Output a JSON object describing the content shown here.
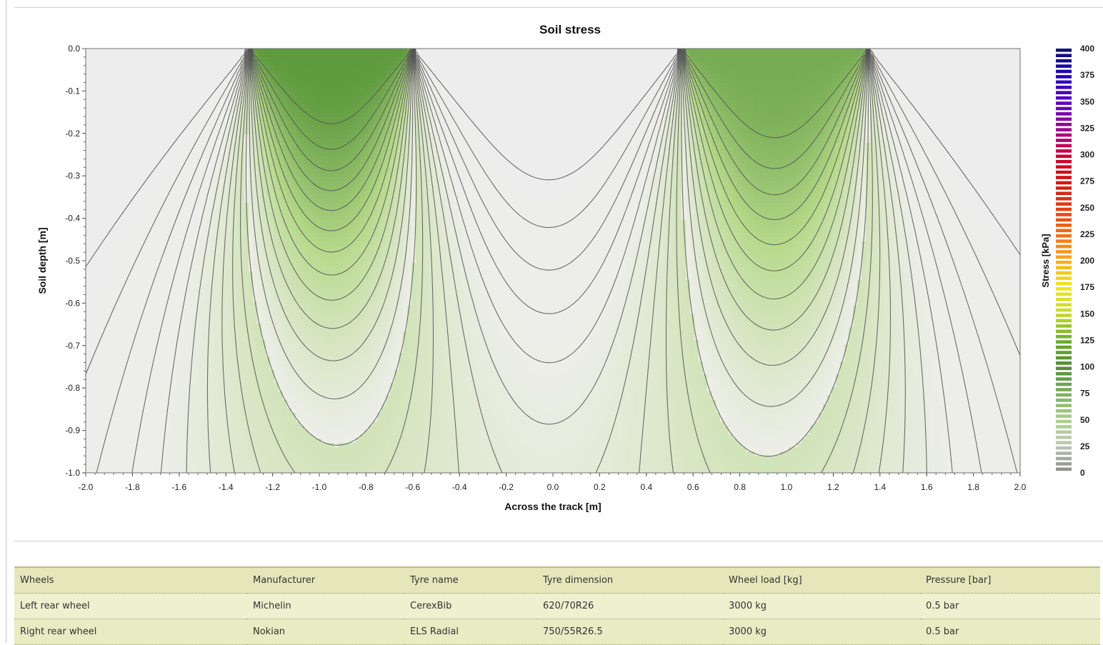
{
  "chart_data": {
    "type": "heatmap",
    "title": "Soil stress",
    "xlabel": "Across the track [m]",
    "ylabel": "Soil depth [m]",
    "xlim": [
      -2.0,
      2.0
    ],
    "ylim": [
      -1.0,
      0.0
    ],
    "x_ticks": [
      "-2.0",
      "-1.8",
      "-1.6",
      "-1.4",
      "-1.2",
      "-1.0",
      "-0.8",
      "-0.6",
      "-0.4",
      "-0.2",
      "0.0",
      "0.2",
      "0.4",
      "0.6",
      "0.8",
      "1.0",
      "1.2",
      "1.4",
      "1.6",
      "1.8",
      "2.0"
    ],
    "y_ticks": [
      "0.0",
      "-0.1",
      "-0.2",
      "-0.3",
      "-0.4",
      "-0.5",
      "-0.6",
      "-0.7",
      "-0.8",
      "-0.9",
      "-1.0"
    ],
    "colorbar": {
      "label": "Stress [kPa]",
      "range": [
        0,
        400
      ],
      "ticks": [
        "400",
        "375",
        "350",
        "325",
        "300",
        "275",
        "250",
        "225",
        "200",
        "175",
        "150",
        "125",
        "100",
        "75",
        "50",
        "25",
        "0"
      ]
    },
    "wheels": [
      {
        "name": "Left rear wheel",
        "center_x": -0.95,
        "contact_half_width": 0.35,
        "peak_stress_kpa": 120
      },
      {
        "name": "Right rear wheel",
        "center_x": 0.95,
        "contact_half_width": 0.4,
        "peak_stress_kpa": 110
      }
    ],
    "grid": false,
    "legend": "colorbar-right",
    "colors": {
      "low": "#edeee8",
      "mid": "#b6d98a",
      "high": "#5e9a3e",
      "contour": "#555555",
      "background": "#ededed"
    }
  },
  "table": {
    "headers": [
      "Wheels",
      "Manufacturer",
      "Tyre name",
      "Tyre dimension",
      "Wheel load [kg]",
      "Pressure [bar]"
    ],
    "rows": [
      [
        "Left rear wheel",
        "Michelin",
        "CerexBib",
        "620/70R26",
        "3000 kg",
        "0.5 bar"
      ],
      [
        "Right rear wheel",
        "Nokian",
        "ELS Radial",
        "750/55R26.5",
        "3000 kg",
        "0.5 bar"
      ]
    ]
  }
}
